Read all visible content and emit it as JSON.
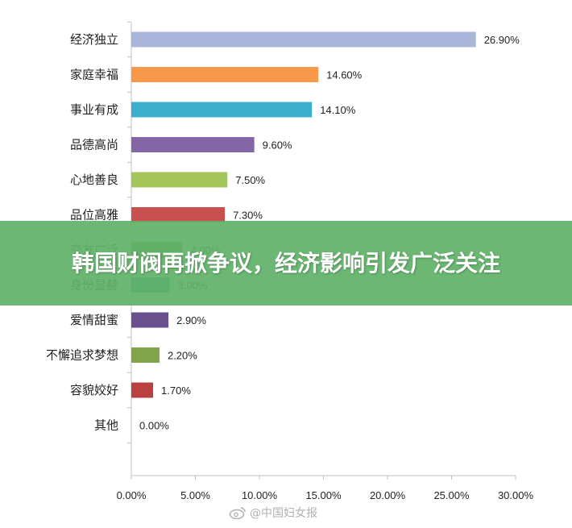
{
  "banner": {
    "title": "韩国财阀再掀争议，经济影响引发广泛关注"
  },
  "watermark": {
    "text": "@中国妇女报",
    "icon": "weibo-icon"
  },
  "chart_data": {
    "type": "bar",
    "orientation": "horizontal",
    "categories": [
      "经济独立",
      "家庭幸福",
      "事业有成",
      "品德高尚",
      "心地善良",
      "品位高雅",
      "交友广泛",
      "身份显赫",
      "爱情甜蜜",
      "不懈追求梦想",
      "容貌姣好",
      "其他"
    ],
    "values": [
      26.9,
      14.6,
      14.1,
      9.6,
      7.5,
      7.3,
      4.0,
      3.0,
      2.9,
      2.2,
      1.7,
      0.0
    ],
    "value_labels": [
      "26.90%",
      "14.60%",
      "14.10%",
      "9.60%",
      "7.50%",
      "7.30%",
      "4.00%",
      "3.00%",
      "2.90%",
      "2.20%",
      "1.70%",
      "0.00%"
    ],
    "colors": [
      "#a9b5d9",
      "#f7974a",
      "#3aaecb",
      "#8266a8",
      "#a3c55a",
      "#c85150",
      "#5f9d45",
      "#3a90a7",
      "#6a4f8f",
      "#7fa44a",
      "#b94140",
      "#5b7fbd"
    ],
    "xlim": [
      0,
      30
    ],
    "xticks": [
      "0.00%",
      "5.00%",
      "10.00%",
      "15.00%",
      "20.00%",
      "25.00%",
      "30.00%"
    ],
    "grid": false
  }
}
